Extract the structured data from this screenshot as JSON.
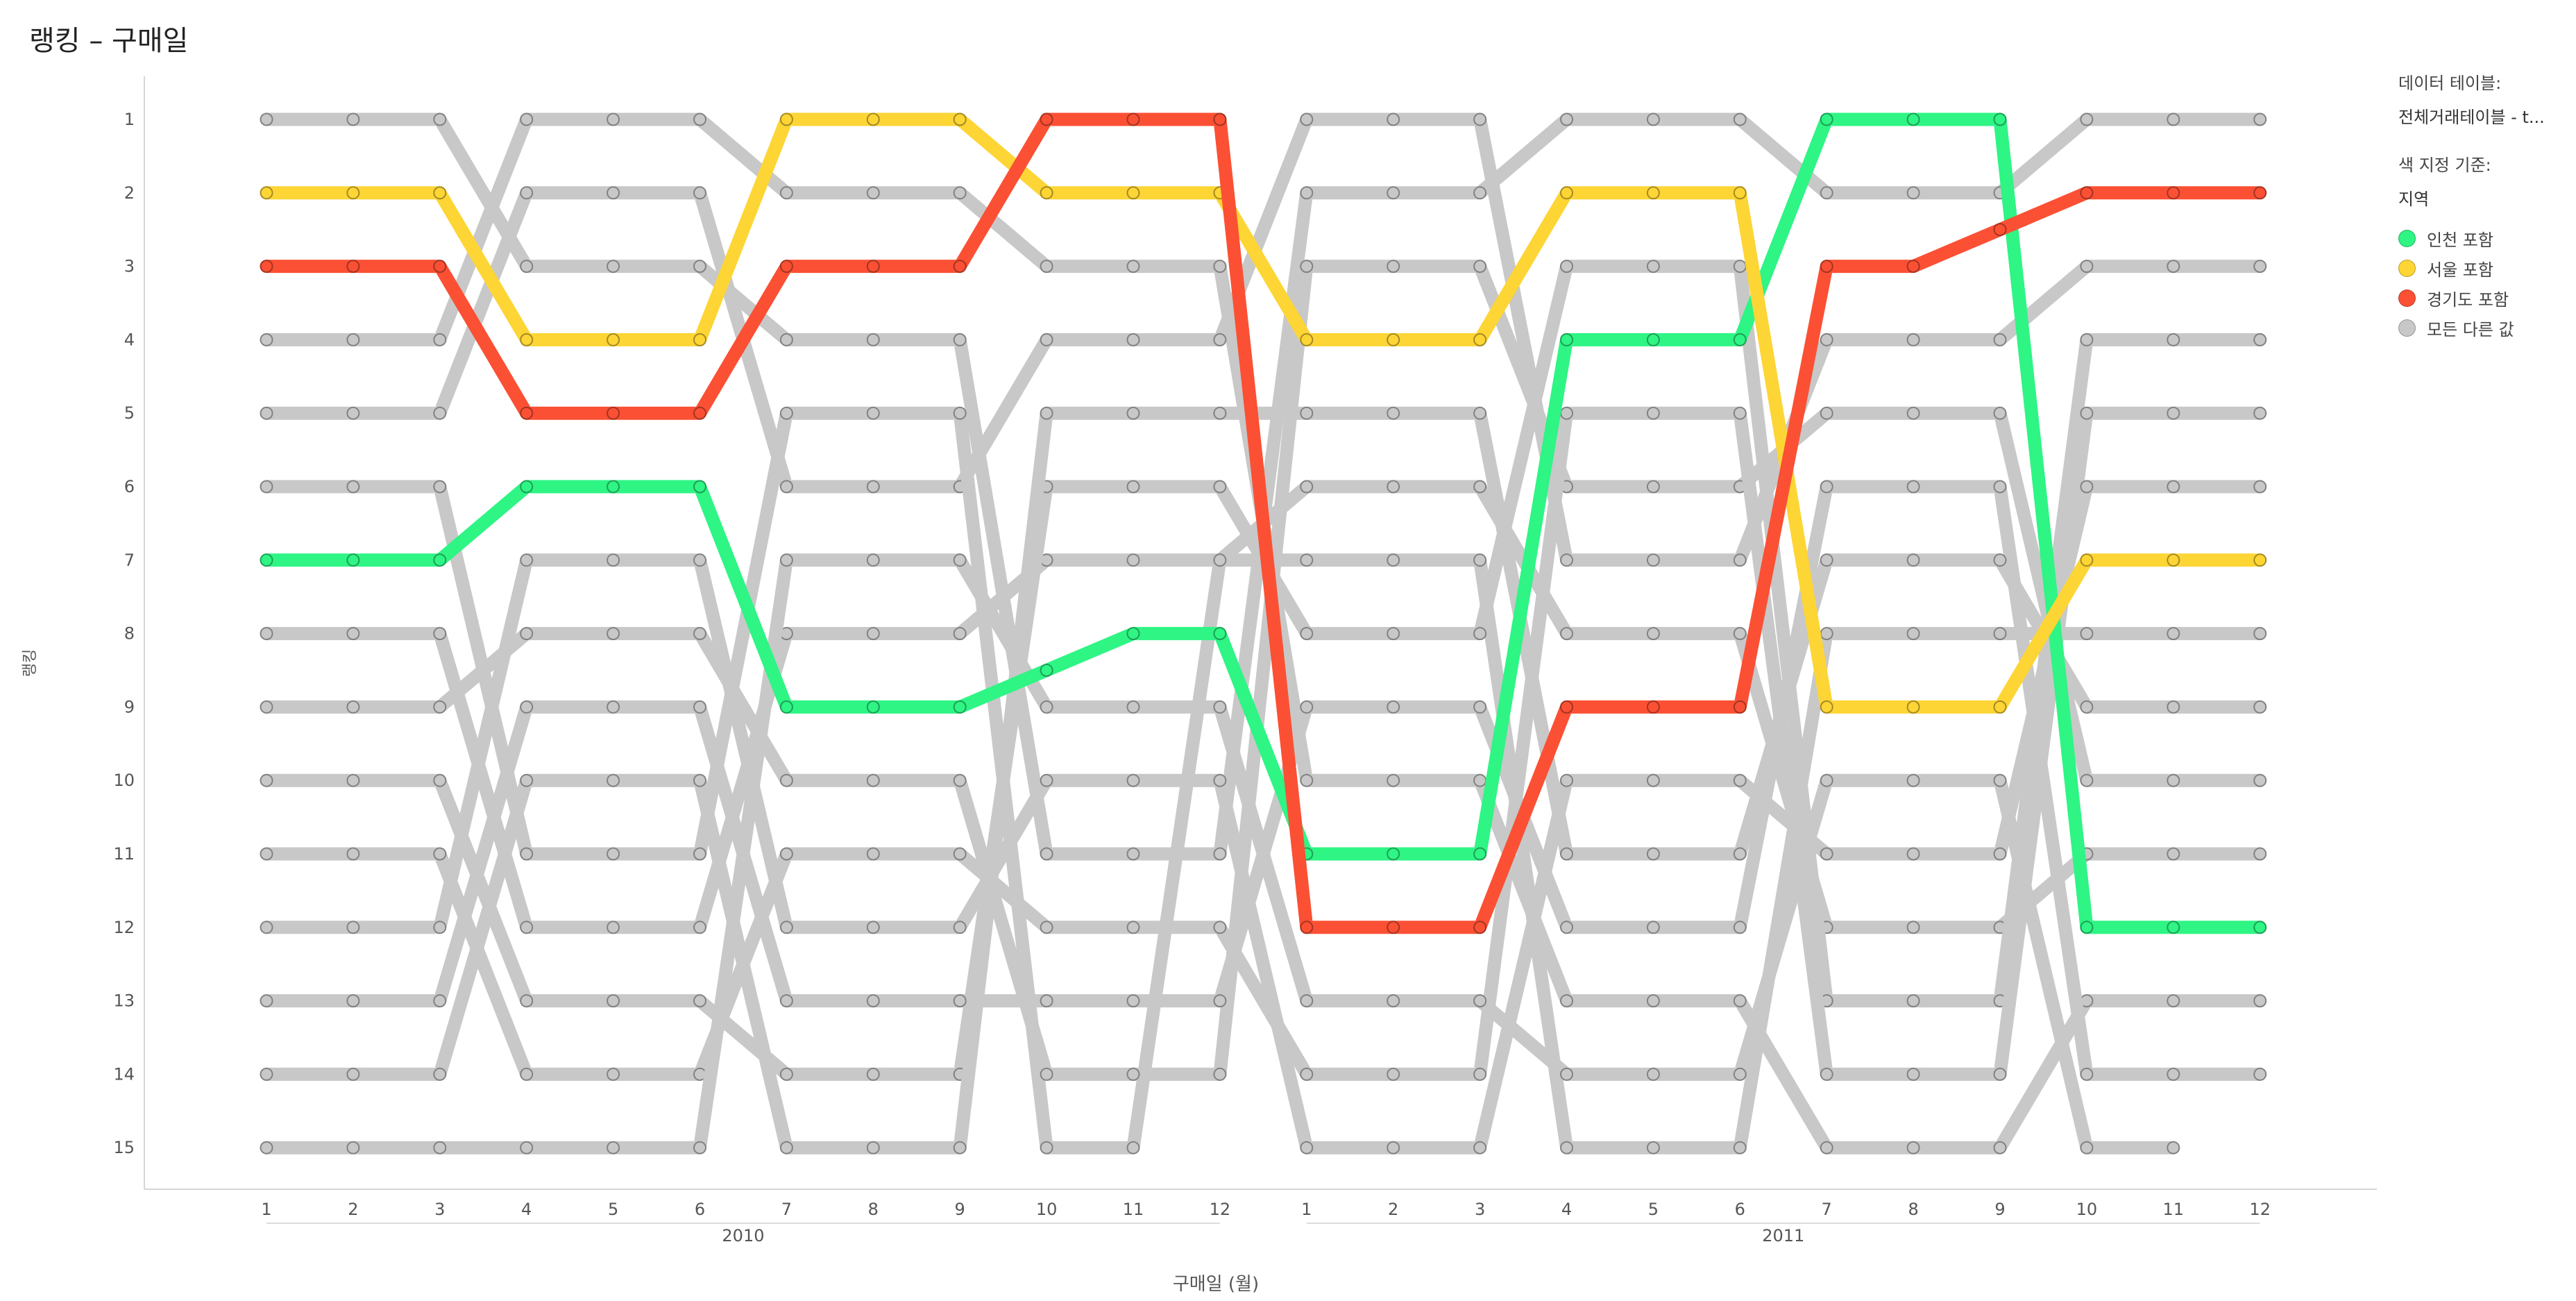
{
  "chart_title": "랭킹 – 구매일",
  "legend": {
    "table_label": "데이터 테이블:",
    "table_value": "전체거래테이블 - t...",
    "color_by_label": "색 지정 기준:",
    "color_by_value": "지역",
    "items": [
      {
        "label": "인천 포함",
        "color": "#2ef584"
      },
      {
        "label": "서울 포함",
        "color": "#fdd535"
      },
      {
        "label": "경기도 포함",
        "color": "#fb5034"
      },
      {
        "label": "모든 다른 값",
        "color": "#c8c8c8"
      }
    ]
  },
  "chart_data": {
    "type": "line",
    "title": "랭킹 – 구매일",
    "xlabel": "구매일 (월)",
    "ylabel": "랭킹",
    "ylim": [
      1,
      15
    ],
    "y_inverted": true,
    "x_tick_labels": [
      "1",
      "2",
      "3",
      "4",
      "5",
      "6",
      "7",
      "8",
      "9",
      "10",
      "11",
      "12",
      "1",
      "2",
      "3",
      "4",
      "5",
      "6",
      "7",
      "8",
      "9",
      "10",
      "11",
      "12"
    ],
    "x_groups": [
      {
        "label": "2010",
        "from": 0,
        "to": 11
      },
      {
        "label": "2011",
        "from": 12,
        "to": 23
      }
    ],
    "y_ticks": [
      1,
      2,
      3,
      4,
      5,
      6,
      7,
      8,
      9,
      10,
      11,
      12,
      13,
      14,
      15
    ],
    "highlight_series": [
      {
        "name": "인천 포함",
        "color": "#2ef584",
        "values": [
          7,
          7,
          7,
          6,
          6,
          6,
          9,
          9,
          9,
          8.5,
          8,
          8,
          11,
          11,
          11,
          4,
          4,
          4,
          1,
          1,
          1,
          12,
          12,
          12
        ]
      },
      {
        "name": "서울 포함",
        "color": "#fdd535",
        "values": [
          2,
          2,
          2,
          4,
          4,
          4,
          1,
          1,
          1,
          2,
          2,
          2,
          4,
          4,
          4,
          2,
          2,
          2,
          9,
          9,
          9,
          7,
          7,
          7
        ]
      },
      {
        "name": "경기도 포함",
        "color": "#fb5034",
        "values": [
          3,
          3,
          3,
          5,
          5,
          5,
          3,
          3,
          3,
          1,
          1,
          1,
          12,
          12,
          12,
          9,
          9,
          9,
          3,
          3,
          2.5,
          2,
          2,
          2
        ]
      }
    ],
    "other_series": [
      {
        "values": [
          1,
          1,
          1,
          3,
          3,
          3,
          4,
          4,
          4,
          11,
          11,
          11,
          2,
          2,
          2,
          1,
          1,
          1,
          2,
          2,
          2,
          1,
          1,
          1
        ]
      },
      {
        "values": [
          4,
          4,
          4,
          1,
          1,
          1,
          2,
          2,
          2,
          3,
          3,
          3,
          10,
          10,
          10,
          13,
          13,
          13,
          15,
          15,
          15,
          13,
          13,
          13
        ]
      },
      {
        "values": [
          5,
          5,
          5,
          2,
          2,
          2,
          6,
          6,
          6,
          4,
          4,
          4,
          1,
          1,
          1,
          7,
          7,
          7,
          4,
          4,
          4,
          3,
          3,
          3
        ]
      },
      {
        "values": [
          6,
          6,
          6,
          11,
          11,
          11,
          5,
          5,
          5,
          15,
          15,
          7,
          7,
          7,
          7,
          15,
          15,
          15,
          8,
          8,
          8,
          8,
          8,
          8
        ]
      },
      {
        "values": [
          8,
          8,
          8,
          12,
          12,
          12,
          8,
          8,
          8,
          7,
          7,
          7,
          6,
          6,
          6,
          8,
          8,
          8,
          12,
          12,
          12,
          11,
          11,
          11
        ]
      },
      {
        "values": [
          9,
          9,
          9,
          8,
          8,
          8,
          10,
          10,
          10,
          14,
          14,
          14,
          3,
          3,
          3,
          6,
          6,
          6,
          5,
          5,
          5,
          10,
          10,
          10
        ]
      },
      {
        "values": [
          10,
          10,
          10,
          13,
          13,
          13,
          14,
          14,
          14,
          6,
          6,
          6,
          8,
          8,
          8,
          3,
          3,
          3,
          13,
          13,
          13,
          4,
          4,
          4
        ]
      },
      {
        "values": [
          11,
          11,
          11,
          14,
          14,
          14,
          11,
          11,
          11,
          12,
          12,
          12,
          14,
          14,
          14,
          5,
          5,
          5,
          14,
          14,
          14,
          5,
          5,
          5
        ]
      },
      {
        "values": [
          12,
          12,
          12,
          7,
          7,
          7,
          12,
          12,
          12,
          10,
          10,
          10,
          15,
          15,
          15,
          10,
          10,
          10,
          11,
          11,
          11,
          6,
          6,
          6
        ]
      },
      {
        "values": [
          13,
          13,
          13,
          9,
          9,
          9,
          13,
          13,
          13,
          13,
          13,
          13,
          9,
          9,
          9,
          12,
          12,
          12,
          6,
          6,
          6,
          14,
          14,
          14
        ]
      },
      {
        "values": [
          14,
          14,
          14,
          10,
          10,
          10,
          15,
          15,
          15,
          5,
          5,
          5,
          5,
          5,
          5,
          11,
          11,
          11,
          7,
          7,
          7,
          9,
          9,
          9
        ]
      },
      {
        "values": [
          15,
          15,
          15,
          15,
          15,
          15,
          7,
          7,
          7,
          9,
          9,
          9,
          13,
          13,
          13,
          14,
          14,
          14,
          10,
          10,
          10,
          15,
          15,
          null
        ]
      }
    ]
  }
}
